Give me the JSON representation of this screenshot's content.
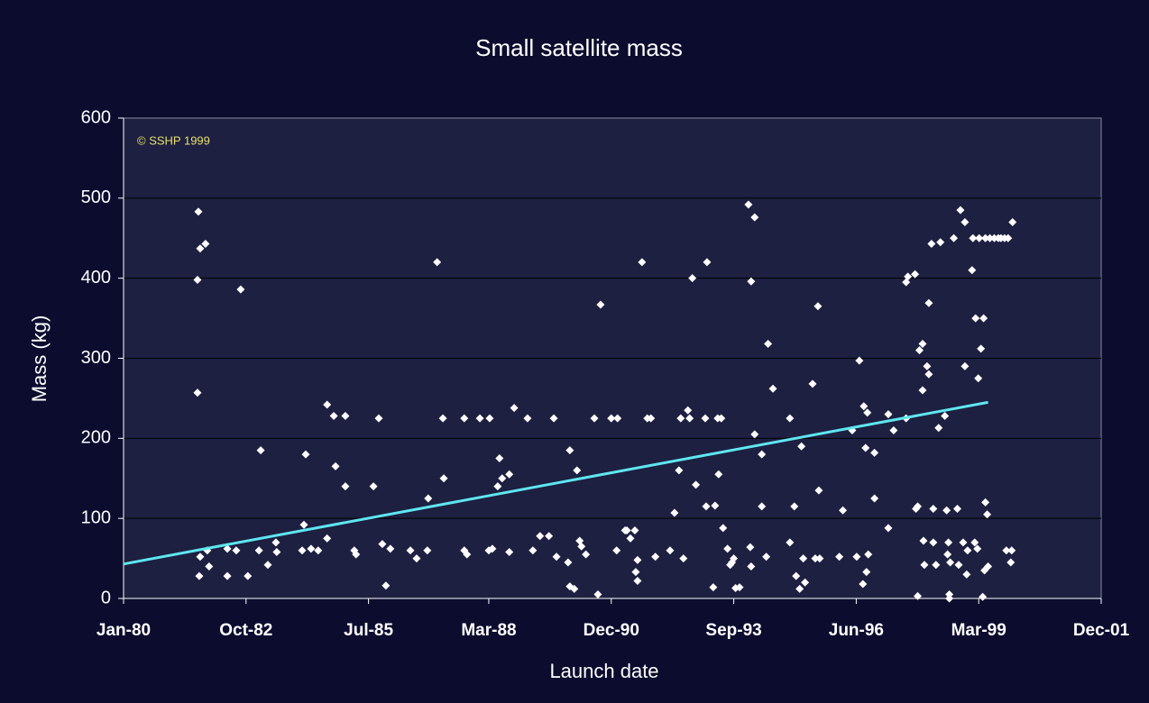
{
  "chart_data": {
    "type": "scatter",
    "title": "Small satellite mass",
    "x_label": "Launch date",
    "y_label": "Mass (kg)",
    "annotation": "© SSHP 1999",
    "color": "#ffffff",
    "grid": true,
    "xlim": [
      1980,
      2001.95
    ],
    "ylim": [
      0,
      600
    ],
    "xticks": [
      {
        "value": 1980,
        "label": "Jan-80"
      },
      {
        "value": 1982.75,
        "label": "Oct-82"
      },
      {
        "value": 1985.5,
        "label": "Jul-85"
      },
      {
        "value": 1988.2,
        "label": "Mar-88"
      },
      {
        "value": 1990.95,
        "label": "Dec-90"
      },
      {
        "value": 1993.7,
        "label": "Sep-93"
      },
      {
        "value": 1996.45,
        "label": "Jun-96"
      },
      {
        "value": 1999.2,
        "label": "Mar-99"
      },
      {
        "value": 2001.95,
        "label": "Dec-01"
      }
    ],
    "yticks": [
      0,
      100,
      200,
      300,
      400,
      500,
      600
    ],
    "x": [
      1981.68,
      1981.72,
      1981.84,
      1981.66,
      1981.66,
      1981.7,
      1981.72,
      1981.88,
      1981.92,
      1982.33,
      1982.33,
      1982.53,
      1982.63,
      1982.79,
      1983.08,
      1983.04,
      1983.24,
      1983.42,
      1983.44,
      1984.09,
      1984.05,
      1984.01,
      1984.21,
      1984.37,
      1984.57,
      1984.57,
      1984.72,
      1984.76,
      1984.98,
      1984.98,
      1985.18,
      1985.22,
      1985.73,
      1985.61,
      1985.81,
      1985.89,
      1985.99,
      1986.44,
      1986.58,
      1986.82,
      1986.84,
      1987.04,
      1987.17,
      1987.19,
      1987.65,
      1987.65,
      1987.71,
      1988.22,
      1988.0,
      1988.2,
      1988.28,
      1988.4,
      1988.44,
      1988.5,
      1988.66,
      1988.66,
      1988.77,
      1989.07,
      1989.19,
      1989.35,
      1989.55,
      1989.66,
      1989.72,
      1990.02,
      1989.98,
      1990.02,
      1990.12,
      1990.18,
      1990.24,
      1990.28,
      1990.38,
      1990.57,
      1990.65,
      1990.71,
      1990.95,
      1991.09,
      1991.07,
      1991.26,
      1991.3,
      1991.38,
      1991.48,
      1991.54,
      1991.5,
      1991.54,
      1991.64,
      1991.76,
      1991.84,
      1991.94,
      1992.27,
      1992.37,
      1992.47,
      1992.51,
      1992.57,
      1992.67,
      1992.71,
      1992.77,
      1992.85,
      1993.06,
      1993.08,
      1993.1,
      1993.24,
      1993.28,
      1993.34,
      1993.36,
      1993.42,
      1993.46,
      1993.56,
      1993.62,
      1993.66,
      1993.7,
      1993.74,
      1993.83,
      1994.03,
      1994.07,
      1994.09,
      1994.09,
      1994.17,
      1994.17,
      1994.33,
      1994.33,
      1994.43,
      1994.47,
      1994.58,
      1994.96,
      1994.96,
      1995.06,
      1995.1,
      1995.18,
      1995.22,
      1995.26,
      1995.3,
      1995.47,
      1995.53,
      1995.59,
      1995.61,
      1995.63,
      1996.07,
      1996.15,
      1996.36,
      1996.46,
      1996.52,
      1996.6,
      1996.62,
      1996.66,
      1996.7,
      1996.72,
      1996.68,
      1996.86,
      1996.86,
      1997.17,
      1997.17,
      1997.29,
      1997.57,
      1997.57,
      1997.61,
      1997.77,
      1997.79,
      1997.83,
      1997.83,
      1997.87,
      1997.94,
      1997.94,
      1997.96,
      1997.98,
      1998.04,
      1998.08,
      1998.08,
      1998.14,
      1998.18,
      1998.24,
      1998.18,
      1998.3,
      1998.34,
      1998.44,
      1998.48,
      1998.52,
      1998.5,
      1998.54,
      1998.56,
      1998.54,
      1998.64,
      1998.72,
      1998.75,
      1998.79,
      1998.85,
      1998.89,
      1998.95,
      1998.93,
      1999.05,
      1999.07,
      1999.11,
      1999.13,
      1999.17,
      1999.19,
      1999.21,
      1999.25,
      1999.29,
      1999.31,
      1999.35,
      1999.35,
      1999.39,
      1999.41,
      1999.45,
      1999.55,
      1999.64,
      1999.7,
      1999.78,
      1999.86,
      1999.82,
      1999.92,
      1999.94,
      1999.96,
      1999.33,
      1998.89
    ],
    "values": [
      483,
      437,
      443,
      398,
      257,
      28,
      52,
      60,
      40,
      28,
      62,
      60,
      386,
      28,
      185,
      60,
      42,
      70,
      58,
      180,
      92,
      60,
      62,
      60,
      75,
      242,
      228,
      165,
      228,
      140,
      60,
      55,
      225,
      140,
      68,
      16,
      62,
      60,
      50,
      60,
      125,
      420,
      225,
      150,
      60,
      225,
      55,
      225,
      225,
      60,
      62,
      140,
      175,
      150,
      155,
      58,
      238,
      225,
      60,
      78,
      78,
      225,
      52,
      185,
      45,
      15,
      12,
      160,
      72,
      65,
      55,
      225,
      5,
      367,
      225,
      225,
      60,
      85,
      85,
      75,
      85,
      48,
      33,
      22,
      420,
      225,
      225,
      52,
      60,
      107,
      160,
      225,
      50,
      235,
      225,
      400,
      142,
      225,
      115,
      420,
      14,
      116,
      225,
      155,
      225,
      88,
      62,
      42,
      45,
      50,
      13,
      14,
      492,
      64,
      396,
      40,
      476,
      205,
      115,
      180,
      52,
      318,
      262,
      225,
      70,
      115,
      28,
      12,
      190,
      50,
      20,
      268,
      50,
      365,
      135,
      50,
      52,
      110,
      210,
      52,
      297,
      18,
      240,
      188,
      232,
      55,
      33,
      182,
      125,
      230,
      88,
      210,
      225,
      395,
      402,
      405,
      112,
      115,
      3,
      310,
      318,
      260,
      72,
      42,
      290,
      280,
      369,
      443,
      112,
      42,
      70,
      213,
      445,
      228,
      110,
      70,
      55,
      5,
      45,
      0,
      450,
      112,
      42,
      485,
      70,
      290,
      60,
      30,
      410,
      450,
      70,
      350,
      62,
      275,
      450,
      312,
      2,
      350,
      120,
      450,
      105,
      40,
      450,
      450,
      450,
      450,
      450,
      450,
      60,
      45,
      60,
      470,
      35,
      470
    ],
    "trendline": {
      "x": [
        1980,
        1999.41
      ],
      "values": [
        43,
        245
      ],
      "color": "#5fe6f0"
    }
  }
}
